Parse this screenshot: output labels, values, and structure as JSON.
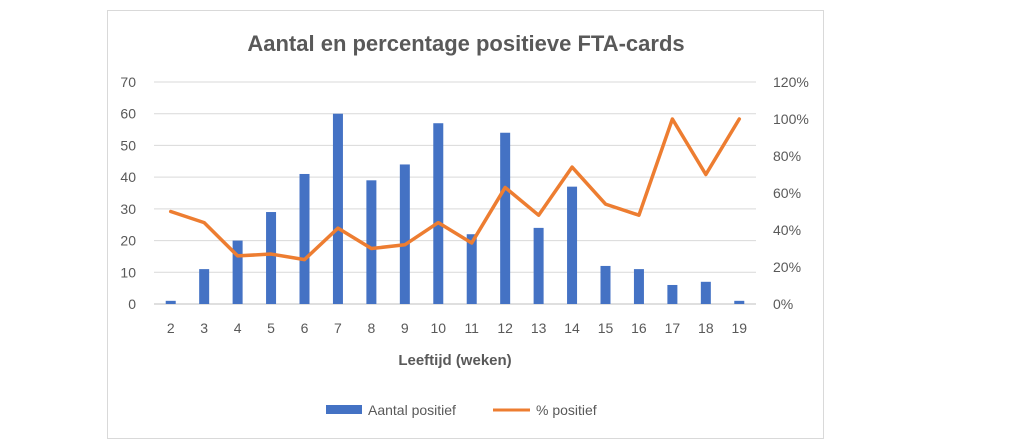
{
  "chart_data": {
    "type": "bar",
    "title": "Aantal en percentage positieve FTA-cards",
    "xlabel": "Leeftijd (weken)",
    "categories": [
      "2",
      "3",
      "4",
      "5",
      "6",
      "7",
      "8",
      "9",
      "10",
      "11",
      "12",
      "13",
      "14",
      "15",
      "16",
      "17",
      "18",
      "19"
    ],
    "y_left": {
      "min": 0,
      "max": 70,
      "step": 10,
      "ticks": [
        "0",
        "10",
        "20",
        "30",
        "40",
        "50",
        "60",
        "70"
      ]
    },
    "y_right": {
      "min": 0,
      "max": 1.2,
      "step": 0.2,
      "ticks": [
        "0%",
        "20%",
        "40%",
        "60%",
        "80%",
        "100%",
        "120%"
      ]
    },
    "grid": true,
    "legend_position": "bottom",
    "series": [
      {
        "name": "Aantal positief",
        "type": "bar",
        "axis": "left",
        "color": "#4472c4",
        "values": [
          1,
          11,
          20,
          29,
          41,
          60,
          39,
          44,
          57,
          22,
          54,
          24,
          37,
          12,
          11,
          6,
          7,
          1
        ]
      },
      {
        "name": "% positief",
        "type": "line",
        "axis": "right",
        "color": "#ed7d31",
        "values": [
          0.5,
          0.44,
          0.26,
          0.27,
          0.24,
          0.41,
          0.3,
          0.32,
          0.44,
          0.33,
          0.63,
          0.48,
          0.74,
          0.54,
          0.48,
          1.0,
          0.7,
          1.0
        ]
      }
    ]
  }
}
